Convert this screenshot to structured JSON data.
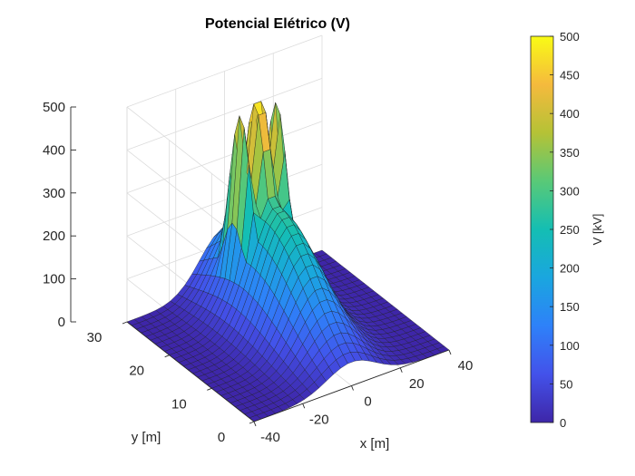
{
  "chart_data": {
    "type": "surface",
    "title": "Potencial Elétrico (V)",
    "xlabel": "x [m]",
    "ylabel": "y [m]",
    "zlabel": "",
    "colorbar_label": "V [kV]",
    "colormap": "parula",
    "grid": true,
    "xlim": [
      -40,
      40
    ],
    "ylim": [
      0,
      30
    ],
    "zlim": [
      0,
      500
    ],
    "clim": [
      0,
      500
    ],
    "x_ticks": [
      -40,
      -20,
      0,
      20,
      40
    ],
    "y_ticks": [
      0,
      10,
      20,
      30
    ],
    "z_ticks": [
      0,
      100,
      200,
      300,
      400,
      500
    ],
    "colorbar_ticks": [
      0,
      50,
      100,
      150,
      200,
      250,
      300,
      350,
      400,
      450,
      500
    ],
    "peaks": [
      {
        "x": -7,
        "y": 22,
        "z": 410
      },
      {
        "x": 0,
        "y": 22,
        "z": 470
      },
      {
        "x": 7,
        "y": 22,
        "z": 410
      }
    ],
    "peak_width": 2.6,
    "envelope": {
      "x": 0,
      "y": 18,
      "z": 280,
      "width": 10
    },
    "grid_points": 28
  }
}
